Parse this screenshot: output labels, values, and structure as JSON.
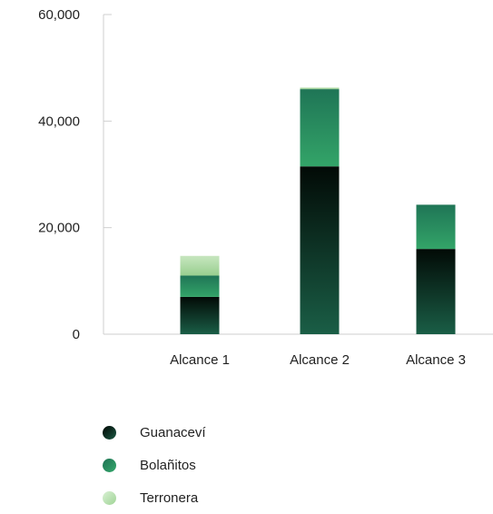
{
  "chart_data": {
    "type": "bar",
    "stacked": true,
    "categories": [
      "Alcance 1",
      "Alcance 2",
      "Alcance 3"
    ],
    "series": [
      {
        "name": "Guanaceví",
        "values": [
          7000,
          31500,
          16000
        ],
        "color": "#0b2a1f"
      },
      {
        "name": "Bolañitos",
        "values": [
          4000,
          14500,
          8300
        ],
        "color": "#239160"
      },
      {
        "name": "Terronera",
        "values": [
          3700,
          300,
          0
        ],
        "color": "#b3dcae"
      }
    ],
    "ylim": [
      0,
      60000
    ],
    "y_ticks": [
      0,
      20000,
      40000,
      60000
    ],
    "y_tick_labels": [
      "0",
      "20,000",
      "40,000",
      "60,000"
    ],
    "grid": false,
    "legend_position": "bottom-left",
    "title": "",
    "xlabel": "",
    "ylabel": ""
  }
}
